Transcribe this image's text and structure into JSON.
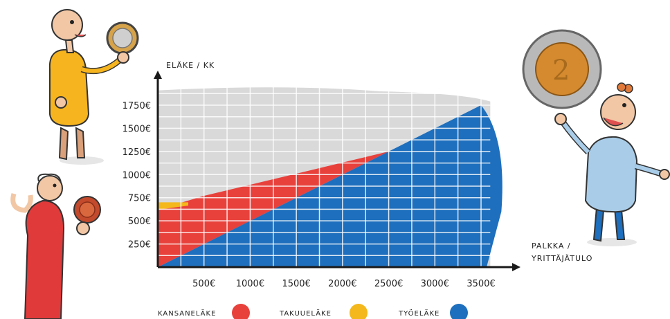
{
  "chart_data": {
    "type": "area",
    "ylabel": "ELÄKE / KK",
    "xlabel_lines": [
      "PALKKA /",
      "YRITTÄJÄTULO"
    ],
    "x_ticks": [
      "500€",
      "1000€",
      "1500€",
      "2000€",
      "2500€",
      "3000€",
      "3500€"
    ],
    "x_tick_values": [
      500,
      1000,
      1500,
      2000,
      2500,
      3000,
      3500
    ],
    "y_ticks": [
      "250€",
      "500€",
      "750€",
      "1000€",
      "1250€",
      "1500€",
      "1750€"
    ],
    "y_tick_values": [
      250,
      500,
      750,
      1000,
      1250,
      1500,
      1750
    ],
    "xlim": [
      0,
      3700
    ],
    "ylim": [
      0,
      1950
    ],
    "grid": true,
    "legend_position": "bottom",
    "series": [
      {
        "name": "KANSANELÄKE",
        "color": "#e8413c",
        "x": [
          0,
          500,
          1000,
          1500,
          2000,
          2500
        ],
        "y": [
          620,
          770,
          890,
          1010,
          1130,
          1250
        ]
      },
      {
        "name": "TAKUUELÄKE",
        "color": "#f4b81c",
        "x": [
          0,
          330
        ],
        "y": [
          700,
          700
        ]
      },
      {
        "name": "TYÖELÄKE",
        "color": "#1e6fbd",
        "x": [
          0,
          500,
          1000,
          1500,
          2000,
          2500,
          3000,
          3500,
          3600
        ],
        "y": [
          0,
          250,
          500,
          750,
          1000,
          1250,
          1500,
          1750,
          1800
        ]
      }
    ]
  },
  "legend": [
    {
      "label": "KANSANELÄKE",
      "color": "#e8413c"
    },
    {
      "label": "TAKUUELÄKE",
      "color": "#f4b81c"
    },
    {
      "label": "TYÖELÄKE",
      "color": "#1e6fbd"
    }
  ],
  "colors": {
    "background_area": "#d9d9d9",
    "grid": "#ffffff",
    "axis": "#1a1a1a"
  }
}
